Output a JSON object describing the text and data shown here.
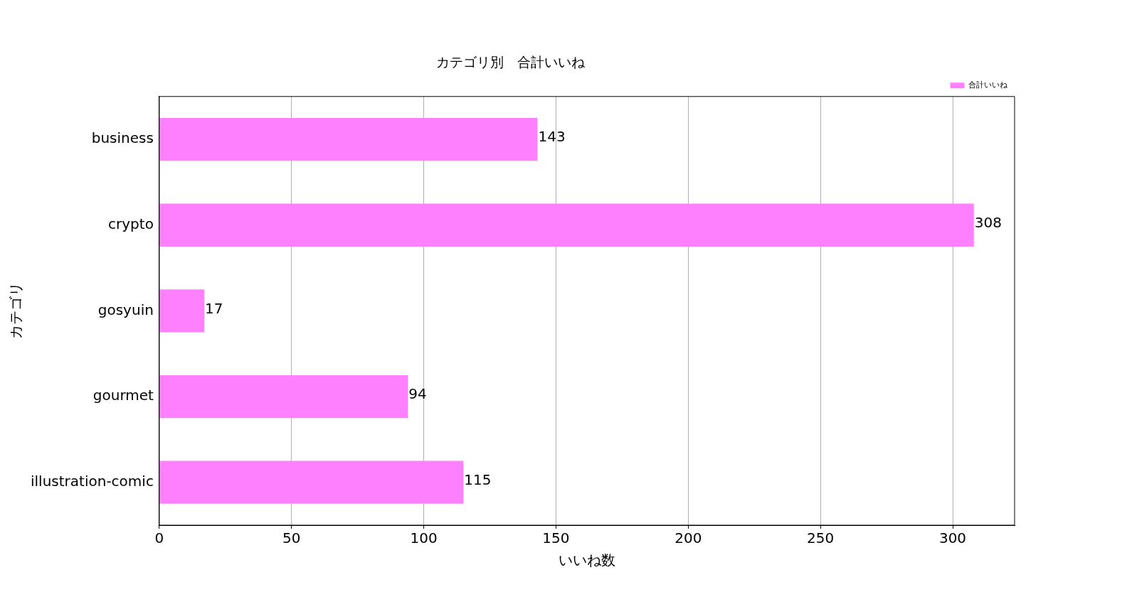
{
  "chart_data": {
    "type": "bar",
    "orientation": "horizontal",
    "title": "カテゴリ別　合計いいね",
    "xlabel": "いいね数",
    "ylabel": "カテゴリ",
    "categories": [
      "business",
      "crypto",
      "gosyuin",
      "gourmet",
      "illustration-comic"
    ],
    "series": [
      {
        "name": "合計いいね",
        "color": "#ff80ff",
        "values": [
          143,
          308,
          17,
          94,
          115
        ]
      }
    ],
    "xlim": [
      0,
      323.4
    ],
    "xticks": [
      0,
      50,
      100,
      150,
      200,
      250,
      300
    ],
    "grid": "x",
    "legend": "top right",
    "data_labels": true
  }
}
